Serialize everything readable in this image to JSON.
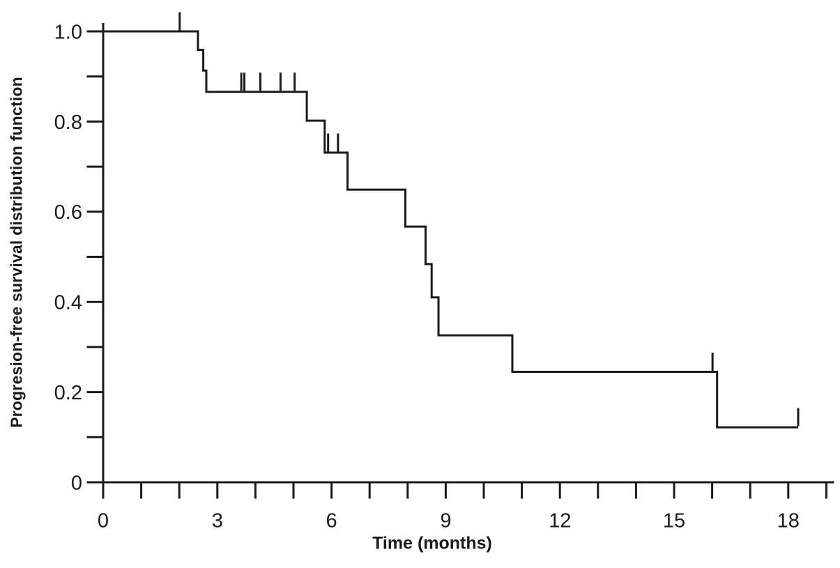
{
  "page": {
    "background_color": "#ffffff",
    "foreground_color": "#1a1a1a"
  },
  "chart_data": {
    "type": "line",
    "subtype": "kaplan-meier-step-function",
    "title": "",
    "xlabel": "Time (months)",
    "ylabel": "Progresion-free survival distribution function",
    "xlim": [
      0,
      19.2
    ],
    "ylim": [
      0,
      1.04
    ],
    "grid": false,
    "legend": false,
    "line_color": "#1a1a1a",
    "x_axis": {
      "major_tick_values": [
        0,
        3,
        6,
        9,
        12,
        15,
        18
      ],
      "major_tick_labels": [
        "0",
        "3",
        "6",
        "9",
        "12",
        "15",
        "18"
      ],
      "minor_tick_step": 1,
      "tick_range": [
        0,
        19
      ]
    },
    "y_axis": {
      "major_tick_values": [
        0,
        0.2,
        0.4,
        0.6,
        0.8,
        1.0
      ],
      "major_tick_labels": [
        "0",
        "0.2",
        "0.4",
        "0.6",
        "0.8",
        "1.0"
      ],
      "minor_tick_step": 0.1,
      "tick_range": [
        0,
        1.0
      ]
    },
    "series": [
      {
        "name": "progression-free-survival",
        "start": [
          0,
          1.0
        ],
        "steps": [
          [
            2.49,
            0.959
          ],
          [
            2.63,
            0.913
          ],
          [
            2.71,
            0.866
          ],
          [
            5.35,
            0.802
          ],
          [
            5.82,
            0.731
          ],
          [
            6.42,
            0.649
          ],
          [
            7.94,
            0.567
          ],
          [
            8.47,
            0.484
          ],
          [
            8.63,
            0.41
          ],
          [
            8.81,
            0.326
          ],
          [
            10.75,
            0.245
          ],
          [
            16.13,
            0.122
          ]
        ],
        "end_time": 18.26,
        "censor_marks": [
          [
            2.01,
            1.0
          ],
          [
            3.63,
            0.866
          ],
          [
            3.71,
            0.866
          ],
          [
            4.13,
            0.866
          ],
          [
            4.66,
            0.866
          ],
          [
            5.03,
            0.866
          ],
          [
            5.91,
            0.731
          ],
          [
            6.17,
            0.731
          ],
          [
            16.01,
            0.245
          ],
          [
            18.26,
            0.122
          ]
        ]
      }
    ]
  }
}
